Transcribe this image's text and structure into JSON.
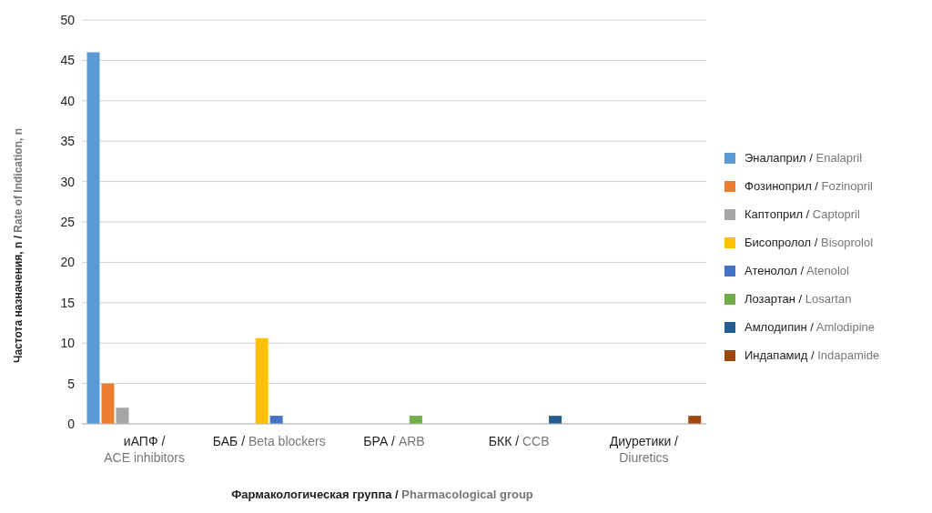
{
  "chart_data": {
    "type": "bar",
    "xlabel": "Фармакологическая группа / Pharmacological group",
    "ylabel": "Частота назначения, n / Rate of Indication, n",
    "categories": [
      "иАПФ /\nACE inhibitors",
      "БАБ / Beta blockers",
      "БРА / ARB",
      "БКК / CCB",
      "Диуретики /\nDiuretics"
    ],
    "series": [
      {
        "name": "Эналаприл / Enalapril",
        "color": "#5b9bd5",
        "values": [
          46,
          null,
          null,
          null,
          null
        ]
      },
      {
        "name": "Фозиноприл / Fozinopril",
        "color": "#ed7d31",
        "values": [
          5,
          null,
          null,
          null,
          null
        ]
      },
      {
        "name": "Каптоприл / Captopril",
        "color": "#a5a5a5",
        "values": [
          2,
          null,
          null,
          null,
          null
        ]
      },
      {
        "name": "Бисопролол / Bisoprolol",
        "color": "#ffc000",
        "values": [
          null,
          10.6,
          null,
          null,
          null
        ]
      },
      {
        "name": "Атенолол / Atenolol",
        "color": "#4472c4",
        "values": [
          null,
          1,
          null,
          null,
          null
        ]
      },
      {
        "name": "Лозартан / Losartan",
        "color": "#70ad47",
        "values": [
          null,
          null,
          1,
          null,
          null
        ]
      },
      {
        "name": "Амлодипин / Amlodipine",
        "color": "#255e91",
        "values": [
          null,
          null,
          null,
          1,
          null
        ]
      },
      {
        "name": "Индапамид / Indapamide",
        "color": "#9e480e",
        "values": [
          null,
          null,
          null,
          null,
          1
        ]
      }
    ],
    "ylim": [
      0,
      50
    ],
    "yticks": [
      0,
      5,
      10,
      15,
      20,
      25,
      30,
      35,
      40,
      45,
      50
    ],
    "grid": "y",
    "legend": "right"
  }
}
